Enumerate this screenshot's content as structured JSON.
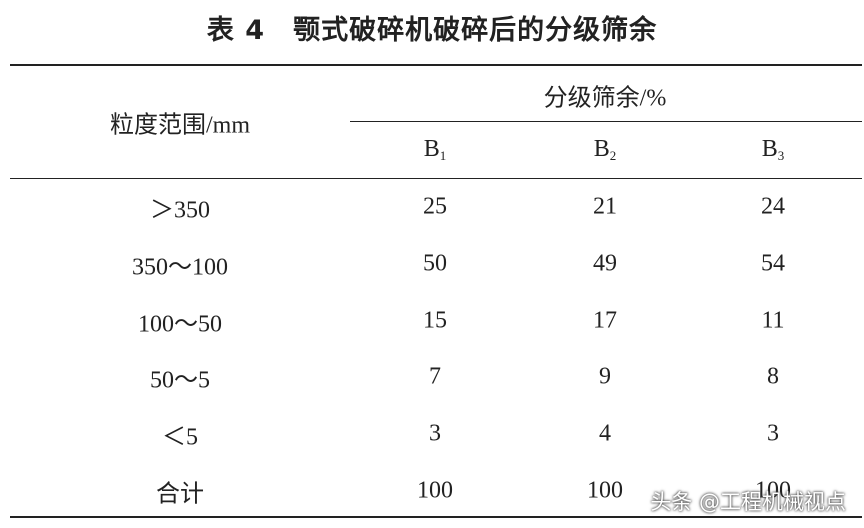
{
  "title": "表 4　颚式破碎机破碎后的分级筛余",
  "table": {
    "row_header": "粒度范围/mm",
    "group_header": "分级筛余/%",
    "columns": [
      {
        "letter": "B",
        "sub": "1"
      },
      {
        "letter": "B",
        "sub": "2"
      },
      {
        "letter": "B",
        "sub": "3"
      }
    ],
    "rows": [
      {
        "label": "＞350",
        "values": [
          25,
          21,
          24
        ]
      },
      {
        "label": "350～100",
        "values": [
          50,
          49,
          54
        ]
      },
      {
        "label": "100～50",
        "values": [
          15,
          17,
          11
        ]
      },
      {
        "label": "50～5",
        "values": [
          7,
          9,
          8
        ]
      },
      {
        "label": "＜5",
        "values": [
          3,
          4,
          3
        ]
      },
      {
        "label": "合计",
        "values": [
          100,
          100,
          100
        ]
      }
    ]
  },
  "watermark": "头条 @工程机械视点"
}
